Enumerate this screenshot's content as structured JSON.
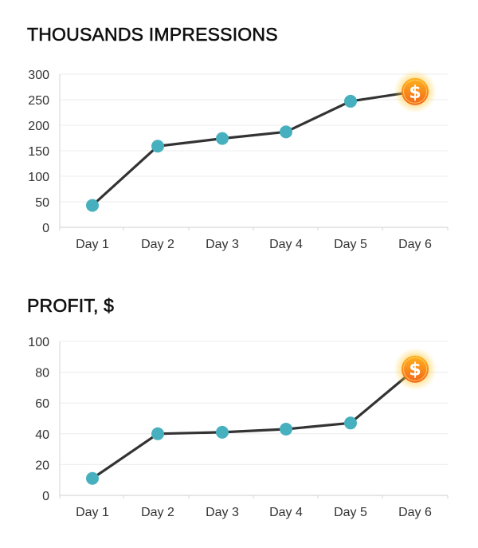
{
  "chart_data": [
    {
      "type": "line",
      "title": "THOUSANDS IMPRESSIONS",
      "categories": [
        "Day 1",
        "Day 2",
        "Day 3",
        "Day 4",
        "Day 5",
        "Day 6"
      ],
      "values": [
        43,
        159,
        174,
        187,
        247,
        266
      ],
      "ylim": [
        0,
        300
      ],
      "yticks": [
        "0",
        "50",
        "100",
        "150",
        "200",
        "250",
        "300"
      ],
      "grid": true,
      "marker_color": "#46b0bf",
      "line_color": "#333333",
      "last_point_icon": "dollar-coin-icon",
      "coin_symbol": "$"
    },
    {
      "type": "line",
      "title": "PROFIT, $",
      "categories": [
        "Day 1",
        "Day 2",
        "Day 3",
        "Day 4",
        "Day 5",
        "Day 6"
      ],
      "values": [
        11,
        40,
        41,
        43,
        47,
        82
      ],
      "ylim": [
        0,
        100
      ],
      "yticks": [
        "0",
        "20",
        "40",
        "60",
        "80",
        "100"
      ],
      "grid": true,
      "marker_color": "#46b0bf",
      "line_color": "#333333",
      "last_point_icon": "dollar-coin-icon",
      "coin_symbol": "$"
    }
  ]
}
